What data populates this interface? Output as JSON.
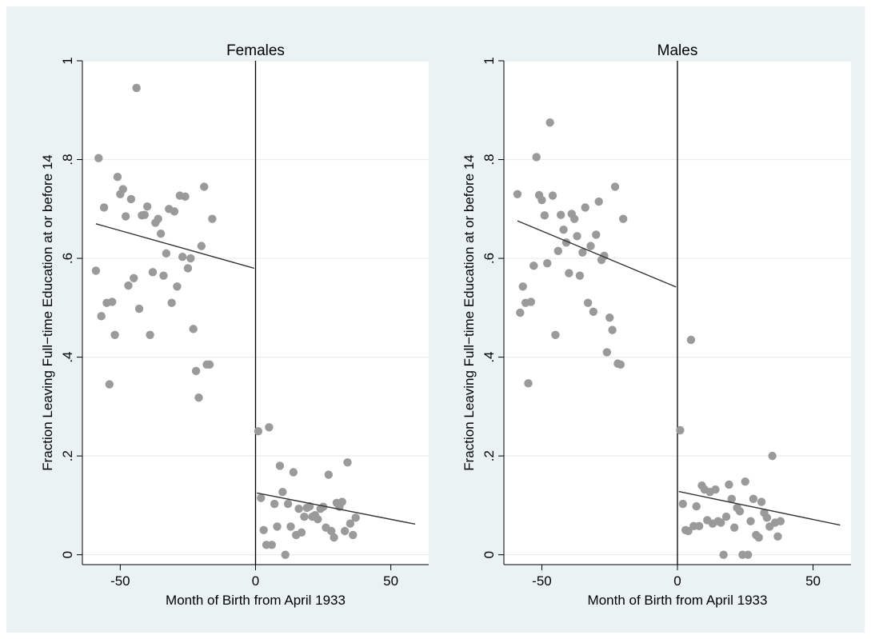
{
  "chart_data": [
    {
      "type": "scatter",
      "title": "Females",
      "xlabel": "Month of Birth from April 1933",
      "ylabel": "Fraction Leaving Full−time Education at or before 14",
      "xlim": [
        -64,
        64
      ],
      "ylim": [
        -0.02,
        1.0
      ],
      "x_ticks": [
        -50,
        0,
        50
      ],
      "x_tick_labels": [
        "-50",
        "0",
        "50"
      ],
      "y_ticks": [
        0,
        0.2,
        0.4,
        0.6,
        0.8,
        1
      ],
      "y_tick_labels": [
        "0",
        ".2",
        ".4",
        ".6",
        ".8",
        "1"
      ],
      "grid": true,
      "marker_color": "#9a9a9a",
      "discontinuity_x": 0,
      "fit_lines": [
        {
          "x": [
            -59,
            -0.5
          ],
          "y": [
            0.67,
            0.58
          ]
        },
        {
          "x": [
            0.5,
            59
          ],
          "y": [
            0.125,
            0.062
          ]
        }
      ],
      "points": [
        [
          -59,
          0.575
        ],
        [
          -58,
          0.803
        ],
        [
          -57,
          0.483
        ],
        [
          -56,
          0.703
        ],
        [
          -55,
          0.51
        ],
        [
          -54,
          0.345
        ],
        [
          -53,
          0.512
        ],
        [
          -52,
          0.445
        ],
        [
          -51,
          0.765
        ],
        [
          -50,
          0.73
        ],
        [
          -49,
          0.74
        ],
        [
          -48,
          0.685
        ],
        [
          -47,
          0.545
        ],
        [
          -46,
          0.72
        ],
        [
          -45,
          0.56
        ],
        [
          -44,
          0.945
        ],
        [
          -43,
          0.498
        ],
        [
          -42,
          0.687
        ],
        [
          -41,
          0.688
        ],
        [
          -40,
          0.705
        ],
        [
          -39,
          0.445
        ],
        [
          -38,
          0.572
        ],
        [
          -37,
          0.672
        ],
        [
          -36,
          0.68
        ],
        [
          -35,
          0.65
        ],
        [
          -34,
          0.565
        ],
        [
          -33,
          0.61
        ],
        [
          -32,
          0.7
        ],
        [
          -31,
          0.51
        ],
        [
          -30,
          0.695
        ],
        [
          -29,
          0.543
        ],
        [
          -28,
          0.727
        ],
        [
          -27,
          0.603
        ],
        [
          -26,
          0.725
        ],
        [
          -25,
          0.58
        ],
        [
          -24,
          0.6
        ],
        [
          -23,
          0.457
        ],
        [
          -22,
          0.372
        ],
        [
          -21,
          0.318
        ],
        [
          -20,
          0.625
        ],
        [
          -19,
          0.745
        ],
        [
          -18,
          0.385
        ],
        [
          -17,
          0.385
        ],
        [
          -16,
          0.68
        ],
        [
          1,
          0.25
        ],
        [
          2,
          0.115
        ],
        [
          3,
          0.05
        ],
        [
          4,
          0.02
        ],
        [
          5,
          0.258
        ],
        [
          6,
          0.02
        ],
        [
          7,
          0.103
        ],
        [
          8,
          0.057
        ],
        [
          9,
          0.18
        ],
        [
          10,
          0.127
        ],
        [
          11,
          0.0
        ],
        [
          12,
          0.103
        ],
        [
          13,
          0.057
        ],
        [
          14,
          0.167
        ],
        [
          15,
          0.04
        ],
        [
          16,
          0.093
        ],
        [
          17,
          0.045
        ],
        [
          18,
          0.077
        ],
        [
          19,
          0.095
        ],
        [
          20,
          0.098
        ],
        [
          21,
          0.077
        ],
        [
          22,
          0.08
        ],
        [
          23,
          0.072
        ],
        [
          24,
          0.093
        ],
        [
          25,
          0.097
        ],
        [
          26,
          0.055
        ],
        [
          27,
          0.162
        ],
        [
          28,
          0.048
        ],
        [
          29,
          0.035
        ],
        [
          30,
          0.105
        ],
        [
          31,
          0.097
        ],
        [
          32,
          0.107
        ],
        [
          33,
          0.048
        ],
        [
          34,
          0.187
        ],
        [
          35,
          0.063
        ],
        [
          36,
          0.04
        ],
        [
          37,
          0.075
        ]
      ]
    },
    {
      "type": "scatter",
      "title": "Males",
      "xlabel": "Month of Birth from April 1933",
      "ylabel": "Fraction Leaving Full−time Education at or before 14",
      "xlim": [
        -64,
        64
      ],
      "ylim": [
        -0.02,
        1.0
      ],
      "x_ticks": [
        -50,
        0,
        50
      ],
      "x_tick_labels": [
        "-50",
        "0",
        "50"
      ],
      "y_ticks": [
        0,
        0.2,
        0.4,
        0.6,
        0.8,
        1
      ],
      "y_tick_labels": [
        "0",
        ".2",
        ".4",
        ".6",
        ".8",
        "1"
      ],
      "grid": true,
      "marker_color": "#9a9a9a",
      "discontinuity_x": 0,
      "fit_lines": [
        {
          "x": [
            -59,
            -0.5
          ],
          "y": [
            0.676,
            0.542
          ]
        },
        {
          "x": [
            0.5,
            60
          ],
          "y": [
            0.128,
            0.06
          ]
        }
      ],
      "points": [
        [
          -59,
          0.73
        ],
        [
          -58,
          0.49
        ],
        [
          -57,
          0.543
        ],
        [
          -56,
          0.51
        ],
        [
          -55,
          0.347
        ],
        [
          -54,
          0.512
        ],
        [
          -53,
          0.585
        ],
        [
          -52,
          0.805
        ],
        [
          -51,
          0.728
        ],
        [
          -50,
          0.718
        ],
        [
          -49,
          0.687
        ],
        [
          -48,
          0.59
        ],
        [
          -47,
          0.875
        ],
        [
          -46,
          0.727
        ],
        [
          -45,
          0.445
        ],
        [
          -44,
          0.615
        ],
        [
          -43,
          0.688
        ],
        [
          -42,
          0.658
        ],
        [
          -41,
          0.632
        ],
        [
          -40,
          0.57
        ],
        [
          -39,
          0.69
        ],
        [
          -38,
          0.68
        ],
        [
          -37,
          0.645
        ],
        [
          -36,
          0.565
        ],
        [
          -35,
          0.612
        ],
        [
          -34,
          0.703
        ],
        [
          -33,
          0.51
        ],
        [
          -32,
          0.625
        ],
        [
          -31,
          0.492
        ],
        [
          -30,
          0.648
        ],
        [
          -29,
          0.715
        ],
        [
          -28,
          0.597
        ],
        [
          -27,
          0.605
        ],
        [
          -26,
          0.41
        ],
        [
          -25,
          0.48
        ],
        [
          -24,
          0.455
        ],
        [
          -23,
          0.745
        ],
        [
          -22,
          0.387
        ],
        [
          -21,
          0.385
        ],
        [
          -20,
          0.68
        ],
        [
          1,
          0.252
        ],
        [
          2,
          0.103
        ],
        [
          3,
          0.05
        ],
        [
          4,
          0.048
        ],
        [
          5,
          0.435
        ],
        [
          6,
          0.058
        ],
        [
          7,
          0.098
        ],
        [
          8,
          0.058
        ],
        [
          9,
          0.14
        ],
        [
          10,
          0.132
        ],
        [
          11,
          0.07
        ],
        [
          12,
          0.127
        ],
        [
          13,
          0.063
        ],
        [
          14,
          0.132
        ],
        [
          15,
          0.068
        ],
        [
          16,
          0.065
        ],
        [
          17,
          0.0
        ],
        [
          18,
          0.077
        ],
        [
          19,
          0.142
        ],
        [
          20,
          0.113
        ],
        [
          21,
          0.055
        ],
        [
          22,
          0.095
        ],
        [
          23,
          0.088
        ],
        [
          24,
          0.0
        ],
        [
          25,
          0.148
        ],
        [
          26,
          0.0
        ],
        [
          27,
          0.068
        ],
        [
          28,
          0.113
        ],
        [
          29,
          0.04
        ],
        [
          30,
          0.035
        ],
        [
          31,
          0.107
        ],
        [
          32,
          0.085
        ],
        [
          33,
          0.075
        ],
        [
          34,
          0.057
        ],
        [
          35,
          0.2
        ],
        [
          36,
          0.065
        ],
        [
          37,
          0.037
        ],
        [
          38,
          0.068
        ]
      ]
    }
  ]
}
